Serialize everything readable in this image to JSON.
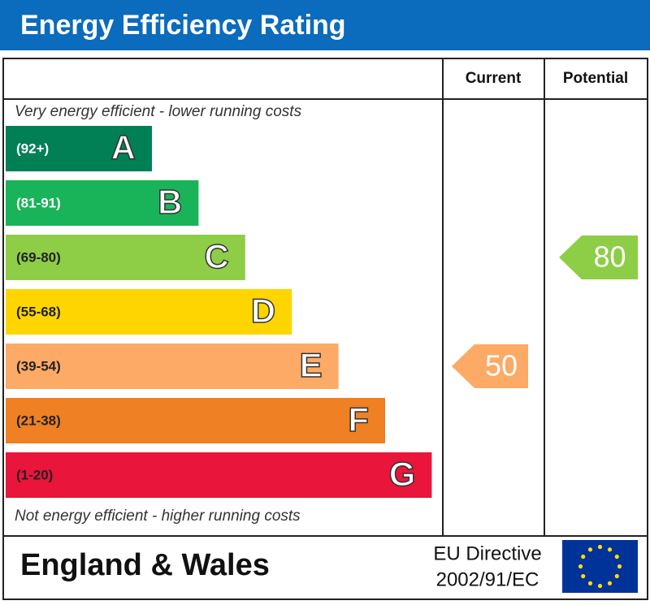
{
  "header": {
    "title": "Energy Efficiency Rating"
  },
  "columns": [
    "Current",
    "Potential"
  ],
  "top_note": "Very energy efficient - lower running costs",
  "bottom_note": "Not energy efficient - higher running costs",
  "bands": [
    {
      "range": "(92+)",
      "letter": "A",
      "color": "#008054"
    },
    {
      "range": "(81-91)",
      "letter": "B",
      "color": "#19b459"
    },
    {
      "range": "(69-80)",
      "letter": "C",
      "color": "#8dce46"
    },
    {
      "range": "(55-68)",
      "letter": "D",
      "color": "#ffd500"
    },
    {
      "range": "(39-54)",
      "letter": "E",
      "color": "#fcaa65"
    },
    {
      "range": "(21-38)",
      "letter": "F",
      "color": "#ef8023"
    },
    {
      "range": "(1-20)",
      "letter": "G",
      "color": "#e9153b"
    }
  ],
  "current": {
    "value": 50,
    "color": "#fcaa65"
  },
  "potential": {
    "value": 80,
    "color": "#8dce46"
  },
  "footer": {
    "region": "England & Wales",
    "directive": [
      "EU Directive",
      "2002/91/EC"
    ]
  }
}
